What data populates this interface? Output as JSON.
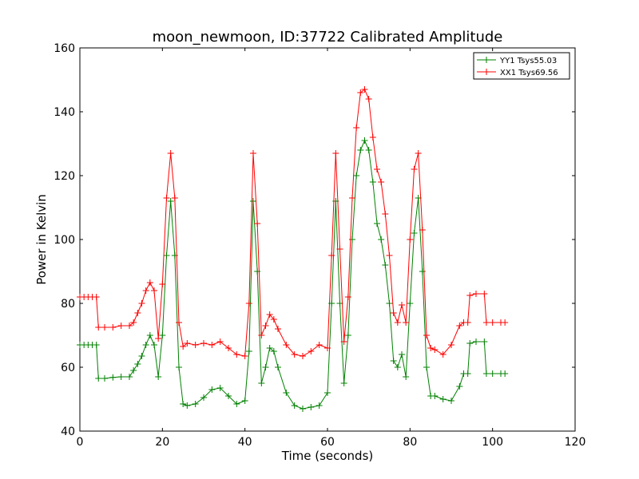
{
  "chart_data": {
    "type": "line",
    "title": "moon_newmoon, ID:37722 Calibrated Amplitude",
    "xlabel": "Time (seconds)",
    "ylabel": "Power in Kelvin",
    "xlim": [
      0,
      120
    ],
    "ylim": [
      40,
      160
    ],
    "xticks": [
      0,
      20,
      40,
      60,
      80,
      100,
      120
    ],
    "yticks": [
      40,
      60,
      80,
      100,
      120,
      140,
      160
    ],
    "grid": false,
    "legend_position": "top-right",
    "marker": "+",
    "series": [
      {
        "name": "YY1 Tsys55.03",
        "color": "#008000",
        "x": [
          0,
          1,
          2,
          3,
          4,
          4.5,
          6,
          8,
          10,
          12,
          13,
          14,
          15,
          16,
          17,
          18,
          19,
          20,
          21,
          22,
          23,
          24,
          25,
          26,
          28,
          30,
          32,
          34,
          36,
          38,
          40,
          41,
          42,
          43,
          44,
          45,
          46,
          47,
          48,
          50,
          52,
          54,
          56,
          58,
          60,
          61,
          62,
          63,
          64,
          65,
          66,
          67,
          68,
          69,
          70,
          71,
          72,
          73,
          74,
          75,
          76,
          77,
          78,
          79,
          80,
          81,
          82,
          83,
          84,
          85,
          86,
          88,
          90,
          92,
          93,
          94,
          94.5,
          96,
          98,
          98.5,
          100,
          102,
          103
        ],
        "values": [
          67,
          67,
          67,
          67,
          67,
          56.5,
          56.5,
          56.8,
          57,
          57,
          59,
          61,
          63.5,
          67,
          70,
          67,
          57,
          70,
          95,
          112,
          95,
          60,
          48.5,
          48,
          48.5,
          50.5,
          53,
          53.5,
          51,
          48.5,
          49.5,
          65,
          112,
          90,
          55,
          60,
          66,
          65,
          60,
          52,
          48,
          47,
          47.5,
          48,
          52,
          80,
          112,
          80,
          55,
          70,
          100,
          120,
          128,
          131,
          128,
          118,
          105,
          100,
          92,
          80,
          62,
          60,
          64,
          57,
          80,
          102,
          113,
          90,
          60,
          51,
          51,
          50,
          49.5,
          54,
          58,
          58,
          67.5,
          68,
          68,
          58,
          58,
          58,
          58
        ]
      },
      {
        "name": "XX1 Tsys69.56",
        "color": "#ff0000",
        "x": [
          0,
          1,
          2,
          3,
          4,
          4.5,
          6,
          8,
          10,
          12,
          13,
          14,
          15,
          16,
          17,
          18,
          19,
          20,
          21,
          22,
          23,
          24,
          25,
          26,
          28,
          30,
          32,
          34,
          36,
          38,
          40,
          41,
          42,
          43,
          44,
          45,
          46,
          47,
          48,
          50,
          52,
          54,
          56,
          58,
          60,
          61,
          62,
          63,
          64,
          65,
          66,
          67,
          68,
          69,
          70,
          71,
          72,
          73,
          74,
          75,
          76,
          77,
          78,
          79,
          80,
          81,
          82,
          83,
          84,
          85,
          86,
          88,
          90,
          92,
          93,
          94,
          94.5,
          96,
          98,
          98.5,
          100,
          102,
          103
        ],
        "values": [
          82,
          82,
          82,
          82,
          82,
          72.5,
          72.5,
          72.5,
          73,
          73,
          74,
          77,
          80,
          84,
          86.5,
          84,
          69,
          86,
          113,
          127,
          113,
          74,
          66.5,
          67.5,
          67,
          67.5,
          67,
          68,
          66,
          64,
          63.5,
          80,
          127,
          105,
          70,
          73,
          76.5,
          75,
          72,
          67,
          64,
          63.5,
          65,
          67,
          66,
          95,
          127,
          97,
          68,
          82,
          113,
          135,
          146,
          147,
          144,
          132,
          122,
          118,
          108,
          95,
          77,
          74,
          79.5,
          74,
          100,
          122,
          127,
          103,
          70,
          66,
          65.5,
          64,
          67,
          73,
          74,
          74,
          82.5,
          83,
          83,
          74,
          74,
          74,
          74
        ]
      }
    ]
  }
}
